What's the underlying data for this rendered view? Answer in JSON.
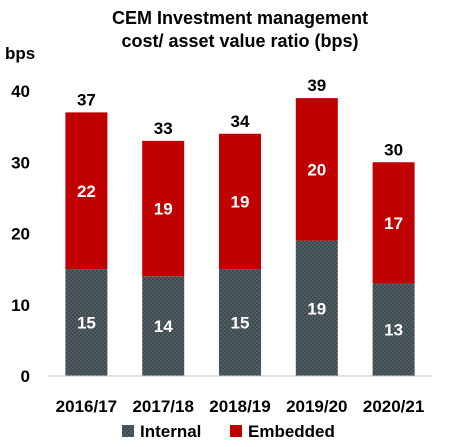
{
  "chart_data": {
    "type": "bar",
    "stacked": true,
    "title_lines": [
      "CEM Investment management",
      "cost/ asset value ratio (bps)"
    ],
    "ylabel": "bps",
    "xlabel": "",
    "ylim": [
      0,
      40
    ],
    "yticks": [
      0,
      10,
      20,
      30,
      40
    ],
    "categories": [
      "2016/17",
      "2017/18",
      "2018/19",
      "2019/20",
      "2020/21"
    ],
    "series": [
      {
        "name": "Internal",
        "values": [
          15,
          14,
          15,
          19,
          13
        ],
        "color": "#3d4a50",
        "pattern": "dotted"
      },
      {
        "name": "Embedded",
        "values": [
          22,
          19,
          19,
          20,
          17
        ],
        "color": "#c00000"
      }
    ],
    "totals": [
      37,
      33,
      34,
      39,
      30
    ],
    "grid": false,
    "legend_position": "bottom"
  }
}
